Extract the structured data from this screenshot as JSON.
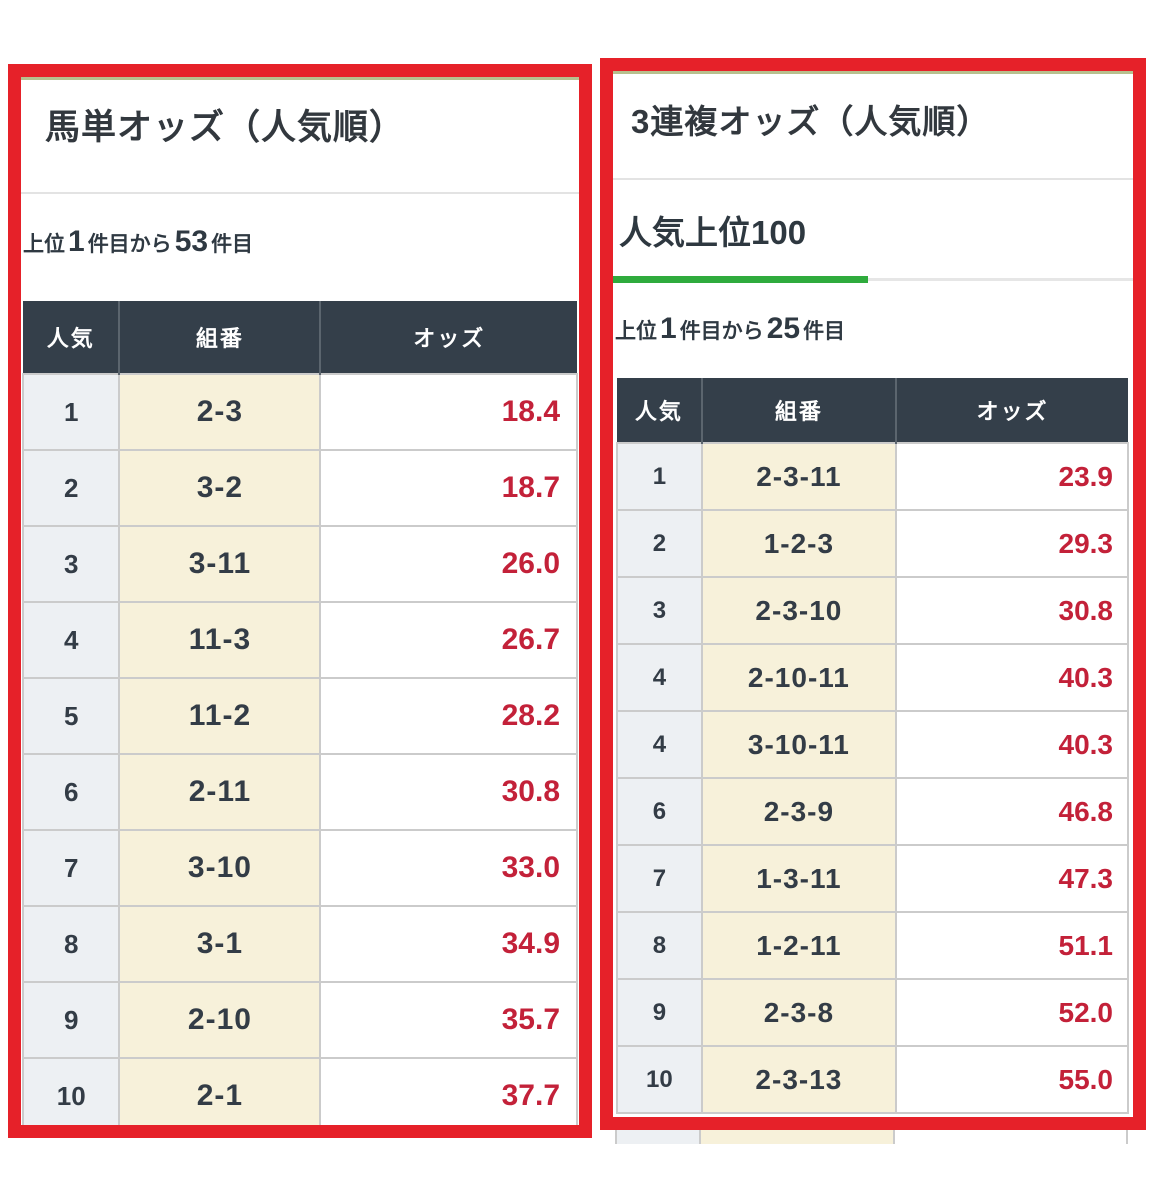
{
  "colors": {
    "annotation_red": "#e62129",
    "table_header_bg": "#343f4a",
    "rank_col_bg": "#edf0f3",
    "combo_col_bg": "#f7f1da",
    "odds_text_red": "#c32139",
    "tab_accent_green": "#2fab3d"
  },
  "left_panel": {
    "title": "馬単オッズ（人気順）",
    "range": {
      "prefix": "上位",
      "from": "1",
      "mid": "件目から",
      "to": "53",
      "suffix": "件目"
    },
    "table": {
      "headers": [
        "人気",
        "組番",
        "オッズ"
      ],
      "rows": [
        {
          "rank": "1",
          "combo": "2-3",
          "odds": "18.4"
        },
        {
          "rank": "2",
          "combo": "3-2",
          "odds": "18.7"
        },
        {
          "rank": "3",
          "combo": "3-11",
          "odds": "26.0"
        },
        {
          "rank": "4",
          "combo": "11-3",
          "odds": "26.7"
        },
        {
          "rank": "5",
          "combo": "11-2",
          "odds": "28.2"
        },
        {
          "rank": "6",
          "combo": "2-11",
          "odds": "30.8"
        },
        {
          "rank": "7",
          "combo": "3-10",
          "odds": "33.0"
        },
        {
          "rank": "8",
          "combo": "3-1",
          "odds": "34.9"
        },
        {
          "rank": "9",
          "combo": "2-10",
          "odds": "35.7"
        },
        {
          "rank": "10",
          "combo": "2-1",
          "odds": "37.7"
        }
      ]
    }
  },
  "right_panel": {
    "title": "3連複オッズ（人気順）",
    "tab": "人気上位100",
    "range": {
      "prefix": "上位",
      "from": "1",
      "mid": "件目から",
      "to": "25",
      "suffix": "件目"
    },
    "table": {
      "headers": [
        "人気",
        "組番",
        "オッズ"
      ],
      "rows": [
        {
          "rank": "1",
          "combo": "2-3-11",
          "odds": "23.9"
        },
        {
          "rank": "2",
          "combo": "1-2-3",
          "odds": "29.3"
        },
        {
          "rank": "3",
          "combo": "2-3-10",
          "odds": "30.8"
        },
        {
          "rank": "4",
          "combo": "2-10-11",
          "odds": "40.3"
        },
        {
          "rank": "4",
          "combo": "3-10-11",
          "odds": "40.3"
        },
        {
          "rank": "6",
          "combo": "2-3-9",
          "odds": "46.8"
        },
        {
          "rank": "7",
          "combo": "1-3-11",
          "odds": "47.3"
        },
        {
          "rank": "8",
          "combo": "1-2-11",
          "odds": "51.1"
        },
        {
          "rank": "9",
          "combo": "2-3-8",
          "odds": "52.0"
        },
        {
          "rank": "10",
          "combo": "2-3-13",
          "odds": "55.0"
        }
      ]
    }
  }
}
